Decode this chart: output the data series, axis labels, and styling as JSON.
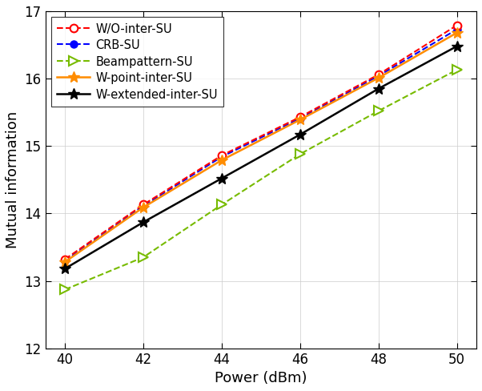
{
  "x": [
    40,
    42,
    44,
    46,
    48,
    50
  ],
  "wo_inter_su": [
    13.32,
    14.13,
    14.86,
    15.43,
    16.06,
    16.79
  ],
  "crb_su": [
    13.3,
    14.11,
    14.84,
    15.41,
    16.04,
    16.73
  ],
  "beampattern_su": [
    12.87,
    13.35,
    14.13,
    14.88,
    15.52,
    16.13
  ],
  "w_point_inter_su": [
    13.28,
    14.09,
    14.79,
    15.39,
    16.01,
    16.68
  ],
  "w_extended_inter_su": [
    13.18,
    13.87,
    14.52,
    15.17,
    15.85,
    16.48
  ],
  "xlabel": "Power (dBm)",
  "ylabel": "Mutual information",
  "ylim": [
    12,
    17
  ],
  "yticks": [
    12,
    13,
    14,
    15,
    16,
    17
  ],
  "xticks": [
    40,
    42,
    44,
    46,
    48,
    50
  ],
  "xlim": [
    39.5,
    50.5
  ],
  "color_wo": "#FF0000",
  "color_crb": "#0000FF",
  "color_beam": "#77BB00",
  "color_wpoint": "#FF8C00",
  "color_wext": "#000000",
  "label_wo": "W/O-inter-SU",
  "label_crb": "CRB-SU",
  "label_beam": "Beampattern-SU",
  "label_wpoint": "W-point-inter-SU",
  "label_wext": "W-extended-inter-SU"
}
